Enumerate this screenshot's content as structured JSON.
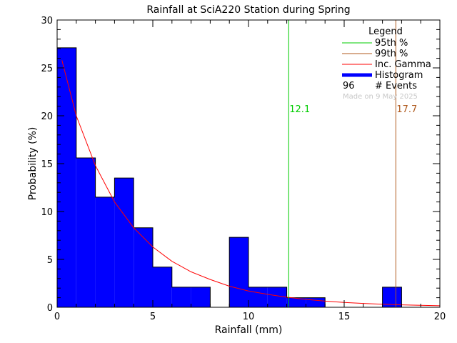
{
  "chart_data": {
    "type": "bar",
    "title": "Rainfall at SciA220 Station during Spring",
    "xlabel": "Rainfall (mm)",
    "ylabel": "Probability (%)",
    "xlim": [
      0,
      20
    ],
    "ylim": [
      0,
      30
    ],
    "xticks": [
      "0",
      "5",
      "10",
      "15",
      "20"
    ],
    "yticks": [
      "0",
      "5",
      "10",
      "15",
      "20",
      "25",
      "30"
    ],
    "histogram": {
      "bin_width": 1,
      "bins": [
        {
          "x0": 0,
          "x1": 1,
          "value": 27.1
        },
        {
          "x0": 1,
          "x1": 2,
          "value": 15.6
        },
        {
          "x0": 2,
          "x1": 3,
          "value": 11.5
        },
        {
          "x0": 3,
          "x1": 4,
          "value": 13.5
        },
        {
          "x0": 4,
          "x1": 5,
          "value": 8.3
        },
        {
          "x0": 5,
          "x1": 6,
          "value": 4.2
        },
        {
          "x0": 6,
          "x1": 7,
          "value": 2.1
        },
        {
          "x0": 7,
          "x1": 8,
          "value": 2.1
        },
        {
          "x0": 8,
          "x1": 9,
          "value": 0
        },
        {
          "x0": 9,
          "x1": 10,
          "value": 7.3
        },
        {
          "x0": 10,
          "x1": 11,
          "value": 2.1
        },
        {
          "x0": 11,
          "x1": 12,
          "value": 2.1
        },
        {
          "x0": 12,
          "x1": 13,
          "value": 1.0
        },
        {
          "x0": 13,
          "x1": 14,
          "value": 1.0
        },
        {
          "x0": 14,
          "x1": 15,
          "value": 0
        },
        {
          "x0": 15,
          "x1": 16,
          "value": 0
        },
        {
          "x0": 16,
          "x1": 17,
          "value": 0
        },
        {
          "x0": 17,
          "x1": 18,
          "value": 2.1
        },
        {
          "x0": 18,
          "x1": 19,
          "value": 0
        },
        {
          "x0": 19,
          "x1": 20,
          "value": 0
        }
      ]
    },
    "gamma_curve": {
      "x": [
        0.25,
        1,
        2,
        3,
        4,
        5,
        6,
        7,
        8,
        9,
        10,
        11,
        12,
        13,
        14,
        15,
        16,
        17,
        18,
        19,
        20
      ],
      "y": [
        25.8,
        20.0,
        14.8,
        11.0,
        8.3,
        6.3,
        4.8,
        3.7,
        2.9,
        2.2,
        1.7,
        1.35,
        1.05,
        0.82,
        0.64,
        0.5,
        0.4,
        0.31,
        0.25,
        0.2,
        0.16
      ]
    },
    "percentiles": [
      {
        "label": "12.1",
        "x": 12.1,
        "color": "#00cc00"
      },
      {
        "label": "17.7",
        "x": 17.7,
        "color": "#b05a1e"
      }
    ],
    "legend": {
      "title": "Legend",
      "position": "top-right",
      "entries": [
        {
          "label": "95th %",
          "color": "#00cc00",
          "style": "line"
        },
        {
          "label": "99th %",
          "color": "#b05a1e",
          "style": "line"
        },
        {
          "label": "Inc. Gamma",
          "color": "#ff0000",
          "style": "line"
        },
        {
          "label": "Histogram",
          "color": "#0000ff",
          "style": "thick"
        }
      ],
      "events_count": "96",
      "events_label": "# Events",
      "made_on": "Made on 9 May 2025"
    },
    "colors": {
      "histogram_fill": "#0000ff",
      "gamma": "#ff0000",
      "axis": "#000000"
    }
  }
}
